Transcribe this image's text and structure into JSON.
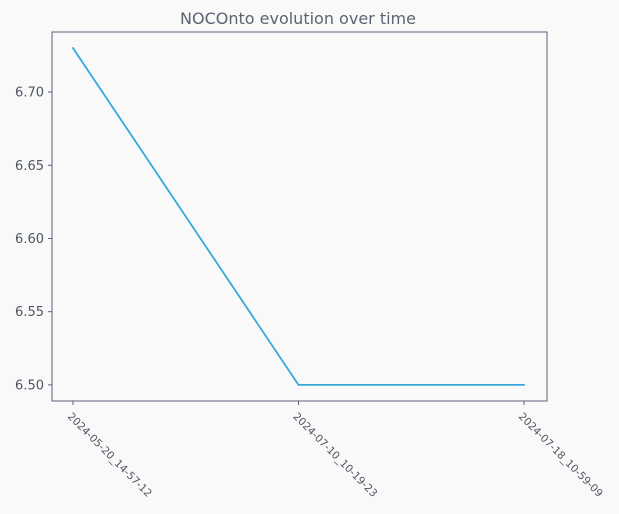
{
  "chart_data": {
    "type": "line",
    "title": "NOCOnto evolution over time",
    "xlabel": "",
    "ylabel": "",
    "categories": [
      "2024-05-20_14-57-12",
      "2024-07-10_10-19-23",
      "2024-07-18_10-59-09"
    ],
    "series": [
      {
        "values": [
          6.73,
          6.5,
          6.5
        ],
        "color": "#38a8d8"
      }
    ],
    "ylim": [
      6.489,
      6.741
    ],
    "yticks": [
      6.5,
      6.55,
      6.6,
      6.65,
      6.7
    ],
    "ytick_labels": [
      "6.50",
      "6.55",
      "6.60",
      "6.65",
      "6.70"
    ],
    "grid": false,
    "colors": {
      "background": "#f9f9f9",
      "plot_background": "#f9f9f9",
      "axis": "#5b6079",
      "text": "#4e5663"
    }
  }
}
